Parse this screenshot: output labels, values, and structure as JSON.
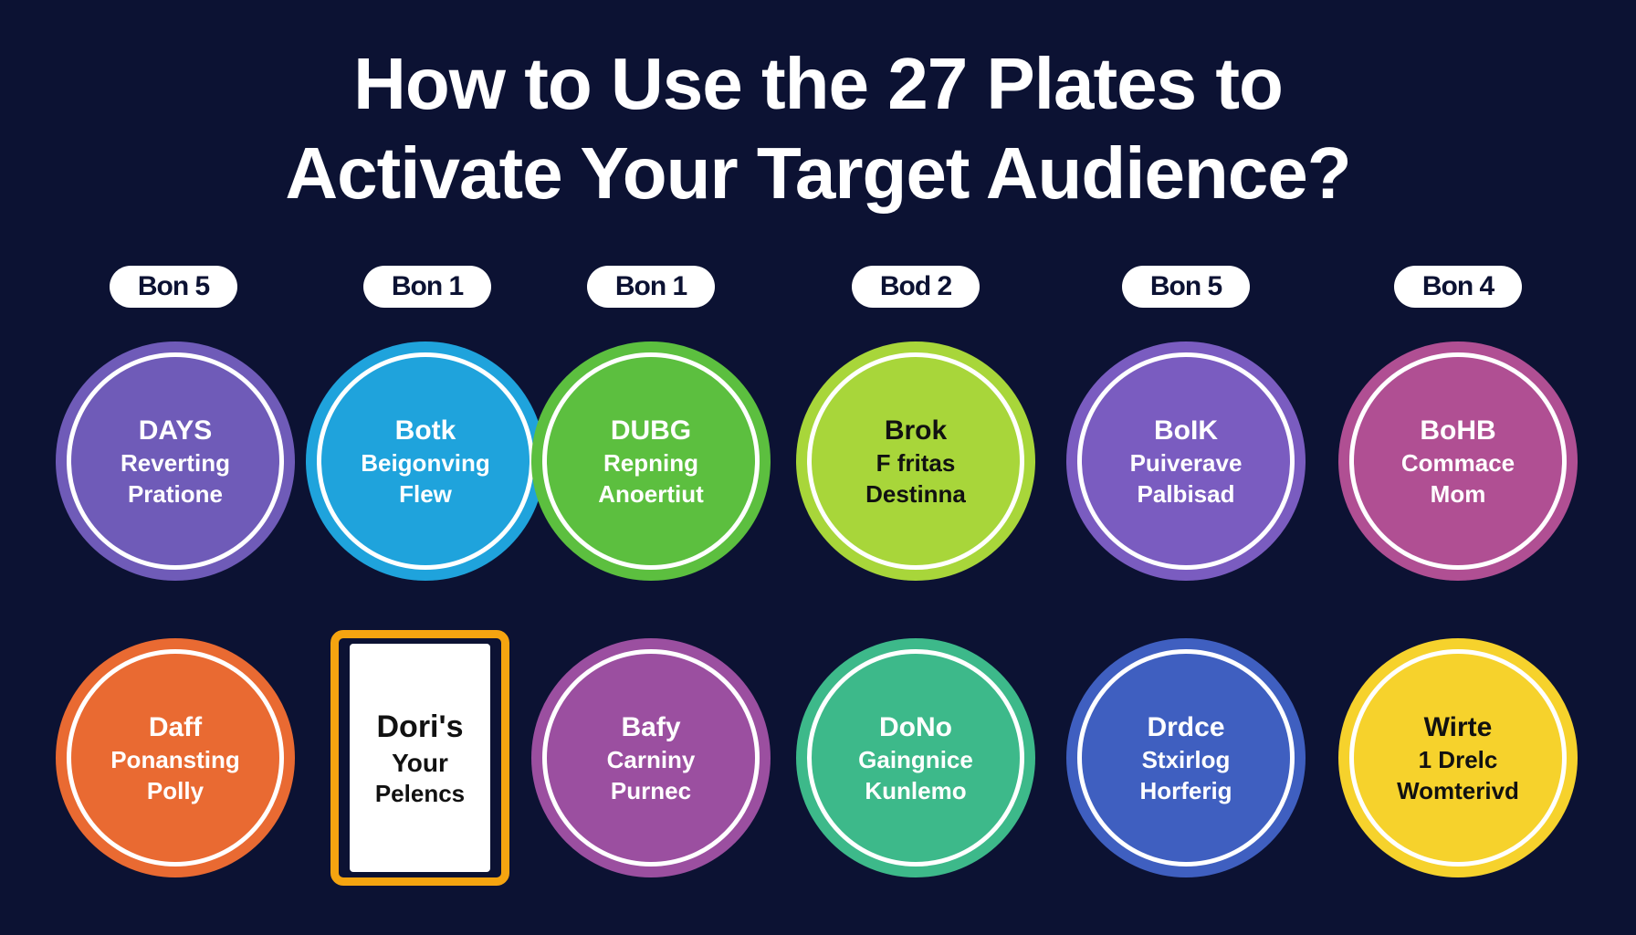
{
  "title": {
    "line1": "How to Use the 27 Plates to",
    "line2": "Activate Your Target Audience?"
  },
  "labels": [
    "Bon 5",
    "Bon 1",
    "Bon 1",
    "Bod 2",
    "Bon 5",
    "Bon 4"
  ],
  "row1": [
    {
      "t1": "DAYS",
      "t2": "Reverting",
      "t3": "Pratione",
      "color": "#6f5bb8"
    },
    {
      "t1": "Botk",
      "t2": "Beigonving",
      "t3": "Flew",
      "color": "#1fa3dc"
    },
    {
      "t1": "DUBG",
      "t2": "Repning",
      "t3": "Anoertiut",
      "color": "#5cbf3f"
    },
    {
      "t1": "Brok",
      "t2": "F fritas",
      "t3": "Destinna",
      "color": "#a8d63a"
    },
    {
      "t1": "BoIK",
      "t2": "Puiverave",
      "t3": "Palbisad",
      "color": "#7a5cc0"
    },
    {
      "t1": "BoHB",
      "t2": "Commace",
      "t3": "Mom",
      "color": "#b04f93"
    }
  ],
  "row2": [
    {
      "t1": "Daff",
      "t2": "Ponansting",
      "t3": "Polly",
      "color": "#e96a32"
    },
    {
      "t1": "Dori's",
      "t2": "Your",
      "t3": "Pelencs",
      "color": "#f5a410"
    },
    {
      "t1": "Bafy",
      "t2": "Carniny",
      "t3": "Purnec",
      "color": "#9b4fa0"
    },
    {
      "t1": "DoNo",
      "t2": "Gaingnice",
      "t3": "Kunlemo",
      "color": "#3db98a"
    },
    {
      "t1": "Drdce",
      "t2": "Stxirlog",
      "t3": "Horferig",
      "color": "#3f5fc0"
    },
    {
      "t1": "Wirte",
      "t2": "1 Drelc",
      "t3": "Womterivd",
      "color": "#f6d22c"
    }
  ]
}
